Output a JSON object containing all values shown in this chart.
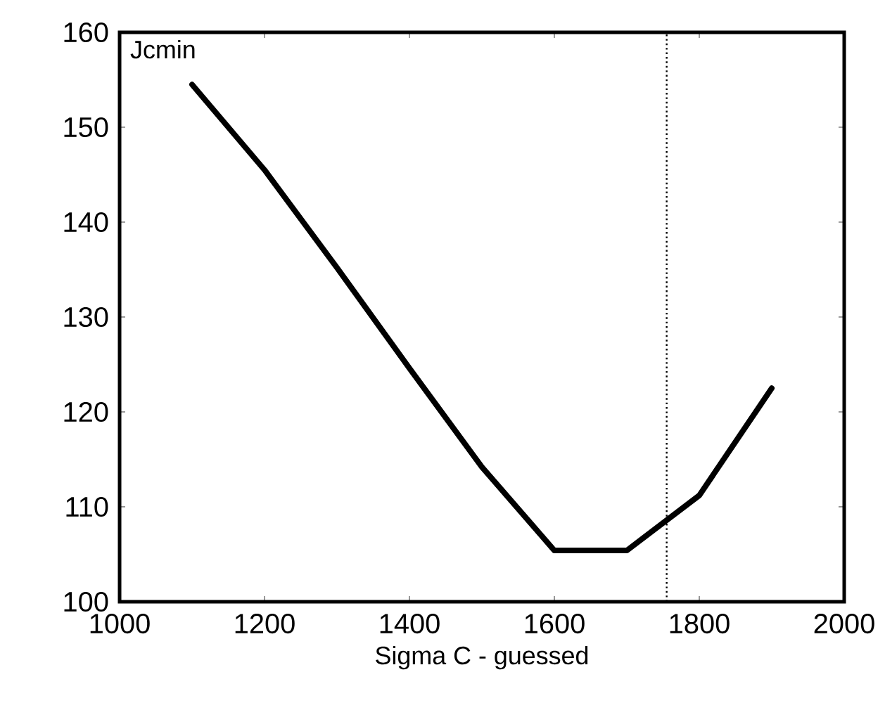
{
  "chart_data": {
    "type": "line",
    "xlabel": "Sigma C - guessed",
    "ylabel": "Jcmin",
    "x": [
      1100,
      1200,
      1300,
      1400,
      1500,
      1600,
      1700,
      1800,
      1900
    ],
    "series": [
      {
        "color": "#000000",
        "values": [
          154.5,
          145.5,
          135.2,
          124.6,
          114.2,
          105.4,
          105.4,
          111.2,
          122.5
        ]
      }
    ],
    "xlim": [
      1000,
      2000
    ],
    "xticks": [
      1000,
      1200,
      1400,
      1600,
      1800,
      2000
    ],
    "ylim": [
      100,
      160
    ],
    "yticks": [
      100,
      110,
      120,
      130,
      140,
      150,
      160
    ],
    "grid": false,
    "marker": "none",
    "line_style": "solid",
    "ref_lines": [
      {
        "axis": "x",
        "value": 1755,
        "color": "#000000",
        "line_style": "dotted"
      }
    ]
  }
}
